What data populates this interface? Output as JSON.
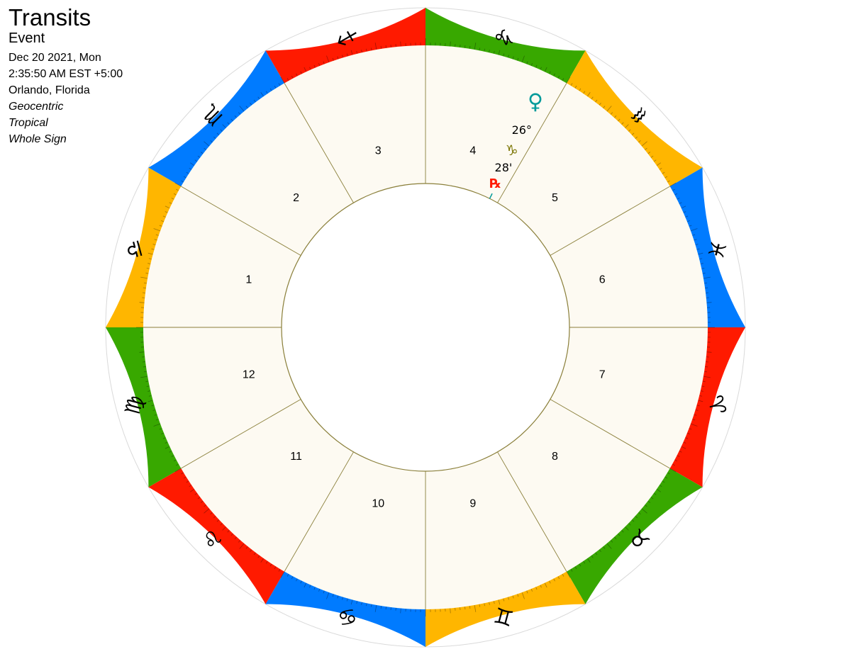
{
  "header": {
    "title": "Transits",
    "subtitle": "Event",
    "date": "Dec 20 2021, Mon",
    "time": "2:35:50 AM EST +5:00",
    "location": "Orlando, Florida",
    "perspective": "Geocentric",
    "zodiac": "Tropical",
    "house_system": "Whole Sign"
  },
  "colors": {
    "fire": "#ff1a00",
    "earth": "#38a800",
    "air": "#ffb600",
    "water": "#007bff",
    "wheel_fill": "#fdfaf2",
    "house_line": "#8a7f3a",
    "retrograde": "#ff1a00",
    "sign_glyph_planet": "#7a7400",
    "venus": "#009a9a"
  },
  "signs": [
    {
      "name": "Aries",
      "glyph": "♈",
      "icon": "aries-icon",
      "color": "#ff1a00"
    },
    {
      "name": "Taurus",
      "glyph": "♉",
      "icon": "taurus-icon",
      "color": "#38a800"
    },
    {
      "name": "Gemini",
      "glyph": "♊",
      "icon": "gemini-icon",
      "color": "#ffb600"
    },
    {
      "name": "Cancer",
      "glyph": "♋",
      "icon": "cancer-icon",
      "color": "#007bff"
    },
    {
      "name": "Leo",
      "glyph": "♌",
      "icon": "leo-icon",
      "color": "#ff1a00"
    },
    {
      "name": "Virgo",
      "glyph": "♍",
      "icon": "virgo-icon",
      "color": "#38a800"
    },
    {
      "name": "Libra",
      "glyph": "♎",
      "icon": "libra-icon",
      "color": "#ffb600"
    },
    {
      "name": "Scorpio",
      "glyph": "♏",
      "icon": "scorpio-icon",
      "color": "#007bff"
    },
    {
      "name": "Sagittarius",
      "glyph": "♐",
      "icon": "sagittarius-icon",
      "color": "#ff1a00"
    },
    {
      "name": "Capricorn",
      "glyph": "♑",
      "icon": "capricorn-icon",
      "color": "#38a800"
    },
    {
      "name": "Aquarius",
      "glyph": "♒",
      "icon": "aquarius-icon",
      "color": "#ffb600"
    },
    {
      "name": "Pisces",
      "glyph": "♓",
      "icon": "pisces-icon",
      "color": "#007bff"
    }
  ],
  "houses": [
    "1",
    "2",
    "3",
    "4",
    "5",
    "6",
    "7",
    "8",
    "9",
    "10",
    "11",
    "12"
  ],
  "planet": {
    "name": "Venus",
    "glyph": "♀",
    "icon": "venus-icon",
    "degree_label": "26°",
    "sign_glyph": "♑",
    "sign_icon": "capricorn-icon",
    "minute_label": "28'",
    "retrograde_label": "℞",
    "longitude": 296.47,
    "retrograde": true
  }
}
